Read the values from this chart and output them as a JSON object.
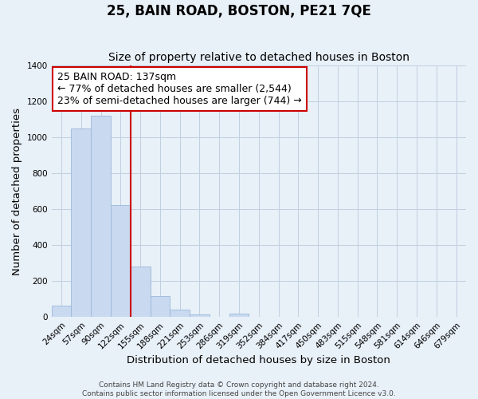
{
  "title": "25, BAIN ROAD, BOSTON, PE21 7QE",
  "subtitle": "Size of property relative to detached houses in Boston",
  "xlabel": "Distribution of detached houses by size in Boston",
  "ylabel": "Number of detached properties",
  "footer_line1": "Contains HM Land Registry data © Crown copyright and database right 2024.",
  "footer_line2": "Contains public sector information licensed under the Open Government Licence v3.0.",
  "bar_labels": [
    "24sqm",
    "57sqm",
    "90sqm",
    "122sqm",
    "155sqm",
    "188sqm",
    "221sqm",
    "253sqm",
    "286sqm",
    "319sqm",
    "352sqm",
    "384sqm",
    "417sqm",
    "450sqm",
    "483sqm",
    "515sqm",
    "548sqm",
    "581sqm",
    "614sqm",
    "646sqm",
    "679sqm"
  ],
  "bar_values": [
    65,
    1050,
    1120,
    625,
    280,
    115,
    40,
    15,
    0,
    20,
    0,
    0,
    0,
    0,
    0,
    0,
    0,
    0,
    0,
    0,
    0
  ],
  "bar_color": "#c9d9f0",
  "bar_edge_color": "#9ab8d8",
  "bar_width": 1.0,
  "ylim": [
    0,
    1400
  ],
  "yticks": [
    0,
    200,
    400,
    600,
    800,
    1000,
    1200,
    1400
  ],
  "vline_x": 3.5,
  "vline_color": "#cc0000",
  "annotation_line1": "25 BAIN ROAD: 137sqm",
  "annotation_line2": "← 77% of detached houses are smaller (2,544)",
  "annotation_line3": "23% of semi-detached houses are larger (744) →",
  "annotation_box_color": "#ffffff",
  "annotation_border_color": "#cc0000",
  "grid_color": "#c0d0e0",
  "background_color": "#e8f0f8",
  "title_fontsize": 12,
  "subtitle_fontsize": 10,
  "axis_label_fontsize": 9.5,
  "tick_fontsize": 7.5,
  "annotation_fontsize": 9,
  "footer_fontsize": 6.5
}
